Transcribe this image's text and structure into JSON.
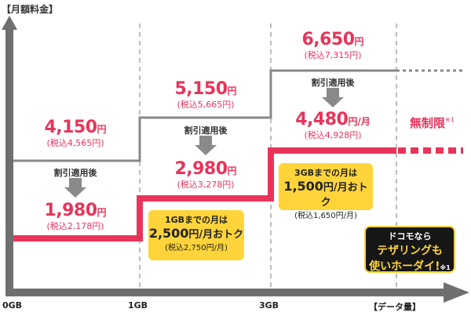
{
  "chart_data": {
    "type": "step",
    "ylabel": "【月額料金】",
    "xlabel": "【データ量】",
    "x_ticks": [
      "0GB",
      "1GB",
      "3GB"
    ],
    "series": [
      {
        "steps": [
          {
            "range": "0GB-1GB",
            "price": "4,150",
            "tax_included": "(税込4,565円)"
          },
          {
            "range": "1GB-3GB",
            "price": "5,150",
            "tax_included": "(税込5,665円)"
          },
          {
            "range": "3GB-",
            "price": "6,650",
            "tax_included": "(税込7,315円)"
          }
        ]
      },
      {
        "steps": [
          {
            "range": "0GB-1GB",
            "price": "1,980",
            "tax_included": "(税込2,178円)"
          },
          {
            "range": "1GB-3GB",
            "price": "2,980",
            "tax_included": "(税込3,278円)"
          },
          {
            "range": "3GB-",
            "price": "4,480",
            "tax_included": "(税込4,928円)"
          }
        ],
        "unlimited_label": "無制限",
        "unlimited_note": "※1"
      }
    ],
    "discount_label": "割引適用後",
    "yen": "円",
    "per_month_yen": "円/月",
    "callouts": [
      {
        "line1": "1GBまでの月は",
        "amount": "2,500",
        "unit": "円/月おトク",
        "tax": "(税込2,750円/月)"
      },
      {
        "line1": "3GBまでの月は",
        "amount": "1,500",
        "unit": "円/月おトク",
        "tax": "(税込1,650円/月)"
      }
    ],
    "tethering_badge": {
      "line1": "ドコモなら",
      "line2": "テザリングも",
      "line3": "使いホーダイ!",
      "note": "※1"
    },
    "colors": {
      "regular_line": "#888888",
      "discount_line": "#e8345a",
      "callout_fill": "#ffd43a",
      "badge_fill": "#161616"
    }
  }
}
